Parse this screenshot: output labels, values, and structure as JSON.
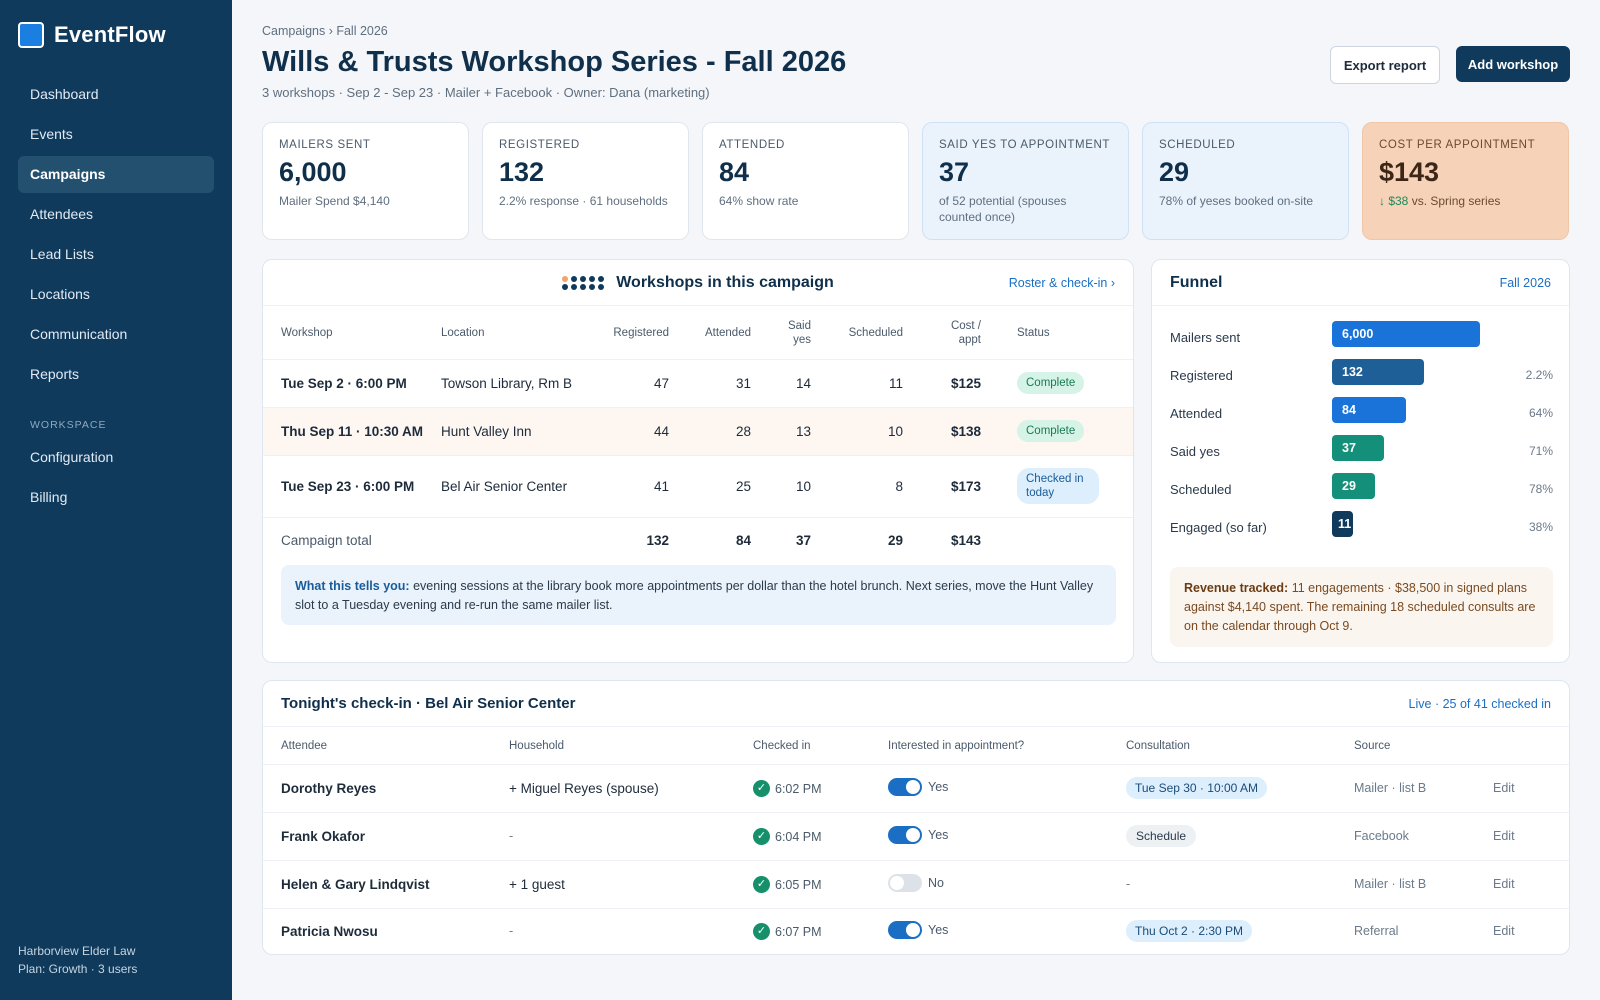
{
  "brand": {
    "name": "EventFlow"
  },
  "nav": {
    "items": [
      "Dashboard",
      "Events",
      "Campaigns",
      "Attendees",
      "Lead Lists",
      "Locations",
      "Communication",
      "Reports"
    ],
    "section": "WORKSPACE",
    "workspace_items": [
      "Configuration",
      "Billing"
    ]
  },
  "org": {
    "name": "Harborview Elder Law",
    "plan": "Plan: Growth · 3 users"
  },
  "header": {
    "breadcrumb": "Campaigns › Fall 2026",
    "title": "Wills & Trusts Workshop Series - Fall 2026",
    "subtitle": "3 workshops · Sep 2 - Sep 23 · Mailer + Facebook · Owner: Dana (marketing)",
    "export_label": "Export report",
    "add_label": "Add workshop"
  },
  "kpis": [
    {
      "label": "MAILERS SENT",
      "value": "6,000",
      "note": "Mailer Spend $4,140"
    },
    {
      "label": "REGISTERED",
      "value": "132",
      "note": "2.2% response · 61 households"
    },
    {
      "label": "ATTENDED",
      "value": "84",
      "note": "64% show rate"
    },
    {
      "label": "SAID YES TO APPOINTMENT",
      "value": "37",
      "note": "of 52 potential (spouses counted once)"
    },
    {
      "label": "SCHEDULED",
      "value": "29",
      "note": "78% of yeses booked on-site"
    },
    {
      "label": "COST PER APPOINTMENT",
      "value": "$143",
      "delta": "↓ $38",
      "note": " vs. Spring series"
    }
  ],
  "workshops": {
    "title": "Workshops in this campaign",
    "link": "Roster & check-in ›",
    "columns": [
      "Workshop",
      "Location",
      "Registered",
      "Attended",
      "Said yes",
      "Scheduled",
      "Cost / appt",
      "Status"
    ],
    "rows": [
      {
        "when": "Tue Sep 2 · 6:00 PM",
        "location": "Towson Library, Rm B",
        "registered": "47",
        "attended": "31",
        "said_yes": "14",
        "scheduled": "11",
        "cost": "$125",
        "status": "Complete"
      },
      {
        "when": "Thu Sep 11 · 10:30 AM",
        "location": "Hunt Valley Inn",
        "registered": "44",
        "attended": "28",
        "said_yes": "13",
        "scheduled": "10",
        "cost": "$138",
        "status": "Complete"
      },
      {
        "when": "Tue Sep 23 · 6:00 PM",
        "location": "Bel Air Senior Center",
        "registered": "41",
        "attended": "25",
        "said_yes": "10",
        "scheduled": "8",
        "cost": "$173",
        "status": "Checked in today"
      }
    ],
    "total": {
      "label": "Campaign total",
      "registered": "132",
      "attended": "84",
      "said_yes": "37",
      "scheduled": "29",
      "cost": "$143"
    },
    "insight_lead": "What this tells you:",
    "insight_text": " evening sessions at the library book more appointments per dollar than the hotel brunch. Next series, move the Hunt Valley slot to a Tuesday evening and re-run the same mailer list."
  },
  "funnel": {
    "title": "Funnel",
    "period": "Fall 2026",
    "rows": [
      {
        "label": "Mailers sent",
        "value": "6,000",
        "pct": "",
        "fill": 1.0,
        "color": "#1a73d9"
      },
      {
        "label": "Registered",
        "value": "132",
        "pct": "2.2%",
        "fill": 0.62,
        "color": "#1e5f97"
      },
      {
        "label": "Attended",
        "value": "84",
        "pct": "64%",
        "fill": 0.5,
        "color": "#1a73d9"
      },
      {
        "label": "Said yes",
        "value": "37",
        "pct": "71%",
        "fill": 0.35,
        "color": "#148f7a"
      },
      {
        "label": "Scheduled",
        "value": "29",
        "pct": "78%",
        "fill": 0.29,
        "color": "#148f7a"
      },
      {
        "label": "Engaged (so far)",
        "value": "11",
        "pct": "38%",
        "fill": 0.14,
        "color": "#0f3a5c"
      }
    ],
    "revenue_lead": "Revenue tracked:",
    "revenue_text": " 11 engagements · $38,500 in signed plans against $4,140 spent. The remaining 18 scheduled consults are on the calendar through Oct 9."
  },
  "checkin": {
    "title": "Tonight's check-in · Bel Air Senior Center",
    "live": "Live · 25 of 41 checked in",
    "columns": [
      "Attendee",
      "Household",
      "Checked in",
      "Interested in appointment?",
      "Consultation",
      "Source",
      ""
    ],
    "rows": [
      {
        "name": "Dorothy Reyes",
        "household": "+ Miguel Reyes (spouse)",
        "time": "6:02 PM",
        "interest": "Yes",
        "on": true,
        "consult": "Tue Sep 30 · 10:00 AM",
        "consult_type": "date",
        "source": "Mailer · list B",
        "edit": "Edit"
      },
      {
        "name": "Frank Okafor",
        "household": "-",
        "time": "6:04 PM",
        "interest": "Yes",
        "on": true,
        "consult": "Schedule",
        "consult_type": "action",
        "source": "Facebook",
        "edit": "Edit"
      },
      {
        "name": "Helen & Gary Lindqvist",
        "household": "+ 1 guest",
        "time": "6:05 PM",
        "interest": "No",
        "on": false,
        "consult": "-",
        "consult_type": "none",
        "source": "Mailer · list B",
        "edit": "Edit"
      },
      {
        "name": "Patricia Nwosu",
        "household": "-",
        "time": "6:07 PM",
        "interest": "Yes",
        "on": true,
        "consult": "Thu Oct 2 · 2:30 PM",
        "consult_type": "date",
        "source": "Referral",
        "edit": "Edit"
      }
    ]
  }
}
